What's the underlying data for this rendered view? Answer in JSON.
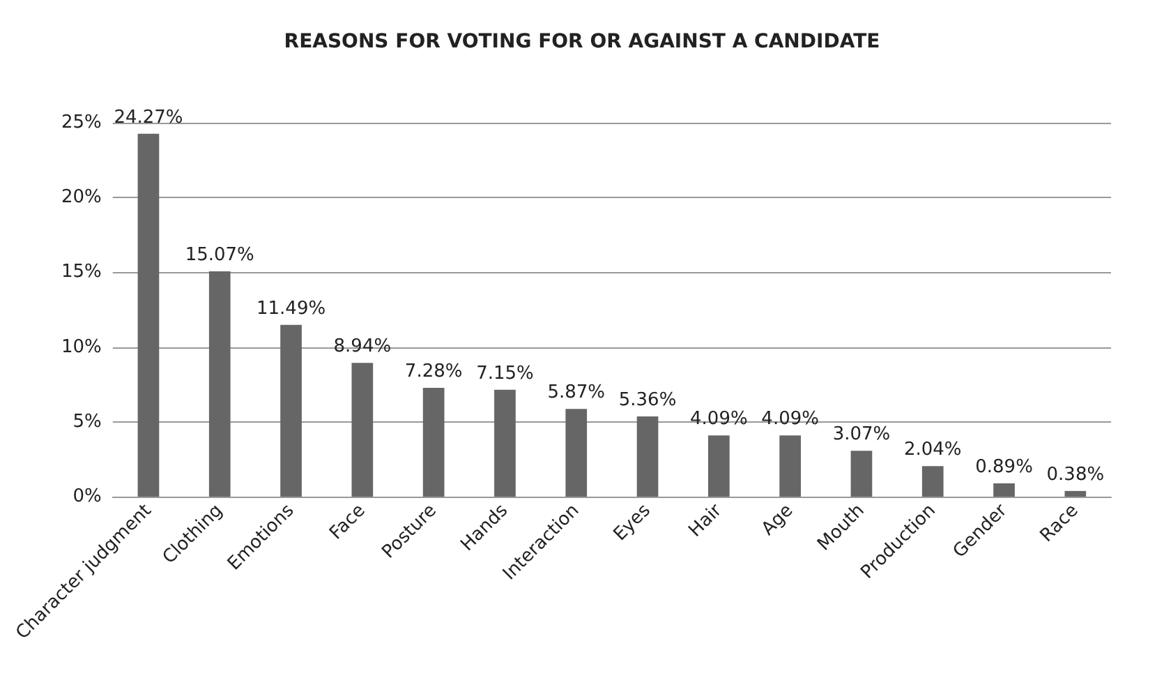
{
  "chart_data": {
    "type": "bar",
    "title": "REASONS FOR VOTING FOR OR AGAINST A CANDIDATE",
    "categories": [
      "Character judgment",
      "Clothing",
      "Emotions",
      "Face",
      "Posture",
      "Hands",
      "Interaction",
      "Eyes",
      "Hair",
      "Age",
      "Mouth",
      "Production",
      "Gender",
      "Race"
    ],
    "values": [
      24.27,
      15.07,
      11.49,
      8.94,
      7.28,
      7.15,
      5.87,
      5.36,
      4.09,
      4.09,
      3.07,
      2.04,
      0.89,
      0.38
    ],
    "value_labels": [
      "24.27%",
      "15.07%",
      "11.49%",
      "8.94%",
      "7.28%",
      "7.15%",
      "5.87%",
      "5.36%",
      "4.09%",
      "4.09%",
      "3.07%",
      "2.04%",
      "0.89%",
      "0.38%"
    ],
    "color": "#666666",
    "ylim": [
      0,
      25
    ],
    "yticks": [
      {
        "value": 0,
        "label": "0%"
      },
      {
        "value": 5,
        "label": "5%"
      },
      {
        "value": 10,
        "label": "10%"
      },
      {
        "value": 15,
        "label": "15%"
      },
      {
        "value": 20,
        "label": "20%"
      },
      {
        "value": 25,
        "label": "25%"
      }
    ],
    "grid": "y"
  }
}
